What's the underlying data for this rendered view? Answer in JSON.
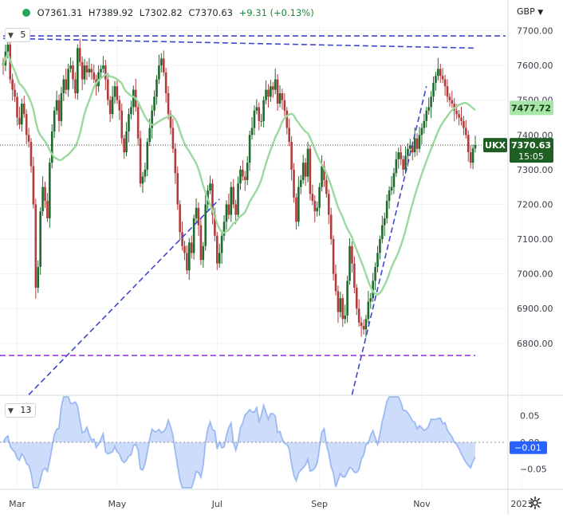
{
  "header": {
    "open": "O7361.31",
    "high": "H7389.92",
    "low": "L7302.82",
    "close": "C7370.63",
    "change": "+9.31 (+0.13%)"
  },
  "main_pane_badge": "5",
  "osc_pane_badge": "13",
  "currency": "GBP",
  "colors": {
    "up": "#1f6b2e",
    "down": "#b23c3c",
    "ma": "#9bd89b",
    "osc": "#9bb9f2",
    "trend": "#3f47cc",
    "support": "#9b3bdb",
    "last_price_bg": "#1f5f24",
    "osc_label_bg": "#2962ff"
  },
  "last_price_label": {
    "symbol": "UKX",
    "price": "7370.63",
    "countdown": "15:05"
  },
  "ma_label": "7477.72",
  "osc_last_label": "−0.01",
  "chart_data": [
    {
      "type": "candlestick",
      "title": "",
      "y_range": [
        6655,
        7715
      ],
      "y_ticks": [
        {
          "value": 7700,
          "label": "7700.00"
        },
        {
          "value": 7600,
          "label": "7600.00"
        },
        {
          "value": 7500,
          "label": "7500.00"
        },
        {
          "value": 7400,
          "label": "7400.00"
        },
        {
          "value": 7300,
          "label": "7300.00"
        },
        {
          "value": 7200,
          "label": "7200.00"
        },
        {
          "value": 7100,
          "label": "7100.00"
        },
        {
          "value": 7000,
          "label": "7000.00"
        },
        {
          "value": 6900,
          "label": "6900.00"
        },
        {
          "value": 6800,
          "label": "6800.00"
        }
      ],
      "x_ticks": [
        {
          "index": 6,
          "label": "Mar"
        },
        {
          "index": 49,
          "label": "May"
        },
        {
          "index": 92,
          "label": "Jul"
        },
        {
          "index": 136,
          "label": "Sep"
        },
        {
          "index": 180,
          "label": "Nov"
        },
        {
          "index": 223,
          "label": "2023"
        }
      ],
      "close": [
        7600,
        7640,
        7660,
        7560,
        7530,
        7510,
        7450,
        7430,
        7490,
        7460,
        7400,
        7380,
        7310,
        7200,
        6960,
        7020,
        7180,
        7250,
        7210,
        7160,
        7320,
        7410,
        7470,
        7500,
        7440,
        7520,
        7560,
        7530,
        7590,
        7600,
        7560,
        7520,
        7650,
        7610,
        7560,
        7600,
        7580,
        7590,
        7580,
        7560,
        7540,
        7580,
        7590,
        7600,
        7560,
        7500,
        7460,
        7510,
        7540,
        7500,
        7470,
        7390,
        7350,
        7410,
        7460,
        7480,
        7530,
        7480,
        7390,
        7260,
        7280,
        7300,
        7380,
        7420,
        7470,
        7510,
        7560,
        7600,
        7620,
        7580,
        7520,
        7460,
        7420,
        7360,
        7290,
        7200,
        7120,
        7080,
        7060,
        7010,
        7090,
        7060,
        7160,
        7190,
        7140,
        7040,
        7080,
        7200,
        7240,
        7260,
        7170,
        7110,
        7030,
        7060,
        7110,
        7150,
        7200,
        7170,
        7250,
        7200,
        7170,
        7260,
        7300,
        7280,
        7270,
        7320,
        7400,
        7420,
        7470,
        7480,
        7440,
        7440,
        7500,
        7530,
        7510,
        7540,
        7530,
        7560,
        7490,
        7520,
        7500,
        7470,
        7420,
        7380,
        7300,
        7220,
        7150,
        7250,
        7270,
        7320,
        7280,
        7360,
        7230,
        7210,
        7180,
        7190,
        7250,
        7310,
        7270,
        7230,
        7170,
        7100,
        7000,
        6950,
        6890,
        6930,
        6870,
        6880,
        6980,
        7080,
        7030,
        6960,
        6900,
        6860,
        6850,
        6840,
        6870,
        6920,
        6930,
        6980,
        7020,
        7060,
        7100,
        7140,
        7160,
        7210,
        7240,
        7250,
        7290,
        7330,
        7350,
        7330,
        7300,
        7340,
        7360,
        7370,
        7350,
        7390,
        7360,
        7400,
        7420,
        7440,
        7470,
        7480,
        7510,
        7550,
        7570,
        7590,
        7570,
        7560,
        7540,
        7510,
        7500,
        7490,
        7470,
        7460,
        7450,
        7440,
        7420,
        7400,
        7350,
        7320,
        7361.31,
        7370.63
      ],
      "ma_label": "7477.72"
    },
    {
      "type": "area",
      "y_range": [
        -0.085,
        0.085
      ],
      "y_ticks": [
        {
          "value": 0.05,
          "label": "0.05"
        },
        {
          "value": 0.0,
          "label": "0.00"
        },
        {
          "value": -0.05,
          "label": "−0.05"
        }
      ],
      "last_value_label": "−0.01"
    }
  ]
}
